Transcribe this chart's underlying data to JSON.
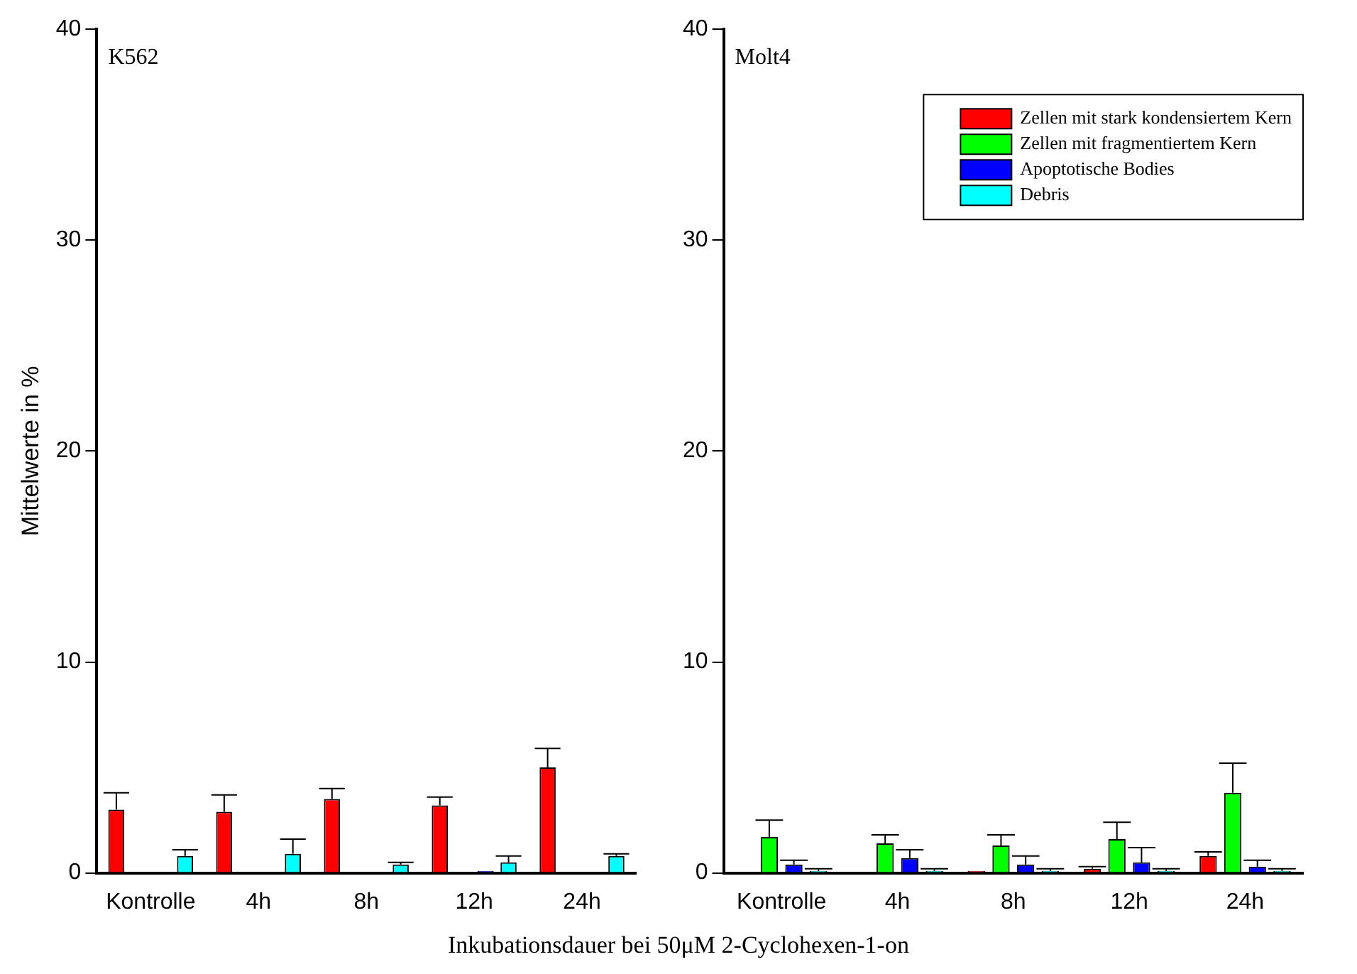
{
  "chart_data": [
    {
      "type": "bar",
      "title": "K562",
      "ylabel": "Mittelwerte in %",
      "xlabel": "Inkubationsdauer bei 50μM 2-Cyclohexen-1-on",
      "categories": [
        "Kontrolle",
        "4h",
        "8h",
        "12h",
        "24h"
      ],
      "ylim": [
        0,
        40
      ],
      "yticks": [
        0,
        10,
        20,
        30,
        40
      ],
      "grid": false,
      "legend": false,
      "series": [
        {
          "color": "#ff0000",
          "values": [
            3.0,
            2.9,
            3.5,
            3.2,
            5.0
          ],
          "errors": [
            [
              3.0,
              3.8
            ],
            [
              2.9,
              3.7
            ],
            [
              3.5,
              4.0
            ],
            [
              3.2,
              3.6
            ],
            [
              5.0,
              5.9
            ]
          ]
        },
        {
          "color": "#00ff00",
          "values": [
            0,
            0,
            0,
            0,
            0
          ]
        },
        {
          "color": "#0000ff",
          "values": [
            0,
            0,
            0,
            0.1,
            0
          ]
        },
        {
          "color": "#00ffff",
          "values": [
            0.8,
            0.9,
            0.4,
            0.5,
            0.8
          ],
          "errors": [
            [
              0.8,
              1.1
            ],
            [
              0.9,
              1.6
            ],
            [
              0.4,
              0.5
            ],
            [
              0.5,
              0.8
            ],
            [
              0.8,
              0.9
            ]
          ]
        }
      ]
    },
    {
      "type": "bar",
      "title": "Molt4",
      "categories": [
        "Kontrolle",
        "4h",
        "8h",
        "12h",
        "24h"
      ],
      "ylim": [
        0,
        40
      ],
      "yticks": [
        0,
        10,
        20,
        30,
        40
      ],
      "grid": false,
      "legend": "top right",
      "series": [
        {
          "name": "Zellen mit stark kondensiertem Kern",
          "color": "#ff0000",
          "values": [
            0,
            0,
            0.1,
            0.2,
            0.8
          ],
          "errors": [
            null,
            null,
            null,
            [
              0.2,
              0.3
            ],
            [
              0.8,
              1.0
            ]
          ]
        },
        {
          "name": "Zellen mit fragmentiertem Kern",
          "color": "#00ff00",
          "values": [
            1.7,
            1.4,
            1.3,
            1.6,
            3.8
          ],
          "errors": [
            [
              1.7,
              2.5
            ],
            [
              1.4,
              1.8
            ],
            [
              1.3,
              1.8
            ],
            [
              1.6,
              2.4
            ],
            [
              3.8,
              5.2
            ]
          ]
        },
        {
          "name": "Apoptotische Bodies",
          "color": "#0000ff",
          "values": [
            0.4,
            0.7,
            0.4,
            0.5,
            0.3
          ],
          "errors": [
            [
              0.4,
              0.6
            ],
            [
              0.7,
              1.1
            ],
            [
              0.4,
              0.8
            ],
            [
              0.5,
              1.2
            ],
            [
              0.3,
              0.6
            ]
          ]
        },
        {
          "name": "Debris",
          "color": "#00ffff",
          "values": [
            0.1,
            0.1,
            0.1,
            0.1,
            0.1
          ],
          "errors": [
            [
              0.1,
              0.2
            ],
            [
              0.1,
              0.2
            ],
            [
              0.1,
              0.2
            ],
            [
              0.1,
              0.2
            ],
            [
              0.1,
              0.2
            ]
          ]
        }
      ]
    }
  ]
}
